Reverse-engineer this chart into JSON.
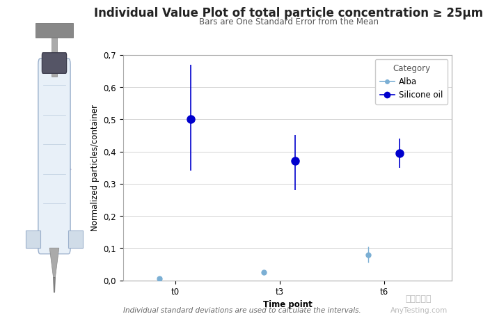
{
  "title": "Individual Value Plot of total particle concentration ≥ 25μm",
  "subtitle": "Bars are One Standard Error from the Mean",
  "xlabel": "Time point",
  "ylabel": "Normalized particles/container",
  "footnote": "Individual standard deviations are used to calculate the intervals.",
  "ylim": [
    0,
    0.7
  ],
  "yticks": [
    0.0,
    0.1,
    0.2,
    0.3,
    0.4,
    0.5,
    0.6,
    0.7
  ],
  "ytick_labels": [
    "0,0",
    "0,1",
    "0,2",
    "0,3",
    "0,4",
    "0,5",
    "0,6",
    "0,7"
  ],
  "xtick_positions": [
    1,
    2,
    3
  ],
  "xtick_labels": [
    "t0",
    "t3",
    "t6"
  ],
  "alba_color": "#7BAFD4",
  "silicone_color": "#0000CD",
  "alba_points": {
    "x": [
      0.85,
      1.85,
      2.85
    ],
    "y": [
      0.005,
      0.025,
      0.08
    ],
    "yerr_low": [
      0.004,
      0.005,
      0.025
    ],
    "yerr_high": [
      0.004,
      0.005,
      0.025
    ]
  },
  "silicone_points": {
    "x": [
      1.15,
      2.15,
      3.15
    ],
    "y": [
      0.5,
      0.37,
      0.395
    ],
    "yerr_low": [
      0.16,
      0.09,
      0.045
    ],
    "yerr_high": [
      0.17,
      0.08,
      0.045
    ]
  },
  "legend_title": "Category",
  "legend_labels": [
    "Alba",
    "Silicone oil"
  ],
  "bg_color": "#FFFFFF",
  "plot_bg_color": "#FFFFFF",
  "title_fontsize": 12,
  "subtitle_fontsize": 8.5,
  "axis_label_fontsize": 8.5,
  "tick_fontsize": 8.5,
  "legend_fontsize": 8.5,
  "footnote_fontsize": 7.5,
  "arrow_color": "#8878B8",
  "watermark1": "嘉峻检测网",
  "watermark2": "AnyTesting.com"
}
